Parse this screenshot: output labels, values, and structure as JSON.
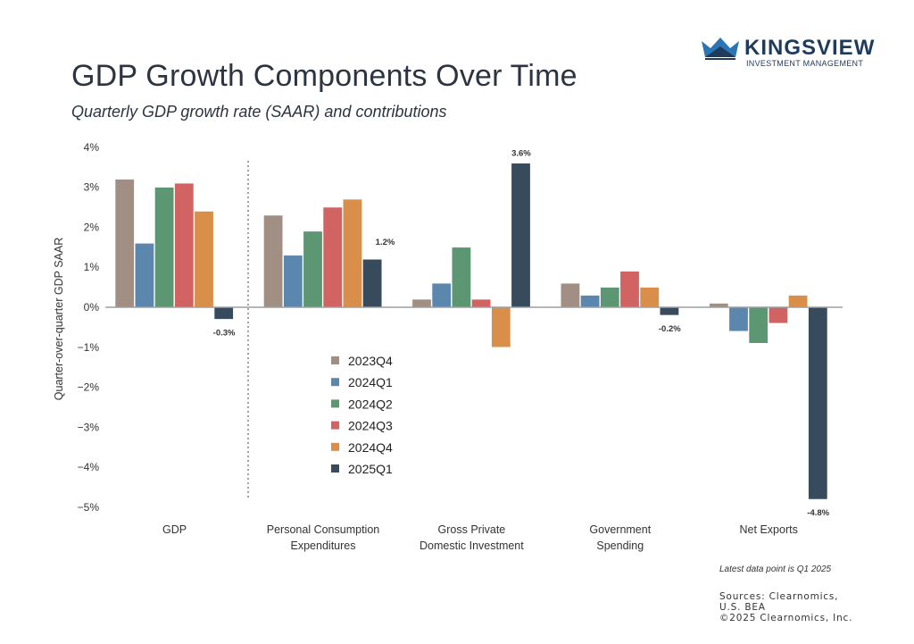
{
  "header": {
    "title": "GDP Growth Components Over Time",
    "subtitle": "Quarterly GDP growth rate (SAAR) and contributions"
  },
  "logo": {
    "name": "KINGSVIEW",
    "tagline": "INVESTMENT MANAGEMENT",
    "icon": "crown-icon"
  },
  "footer": {
    "note": "Latest data point is Q1 2025",
    "sources_line1": "Sources: Clearnomics,",
    "sources_line2": "U.S. BEA",
    "copyright": "©2025 Clearnomics, Inc."
  },
  "chart_data": {
    "type": "bar",
    "title": "GDP Growth Components Over Time",
    "subtitle": "Quarterly GDP growth rate (SAAR) and contributions",
    "xlabel": "",
    "ylabel": "Quarter-over-quarter GDP SAAR",
    "ylim": [
      -5,
      4
    ],
    "yticks": [
      4,
      3,
      2,
      1,
      0,
      -1,
      -2,
      -3,
      -4,
      -5
    ],
    "ytick_labels": [
      "4%",
      "3%",
      "2%",
      "1%",
      "0%",
      "−1%",
      "−2%",
      "−3%",
      "−4%",
      "−5%"
    ],
    "grid": false,
    "legend_position": "center-left",
    "categories": [
      [
        "GDP"
      ],
      [
        "Personal Consumption",
        "Expenditures"
      ],
      [
        "Gross Private",
        "Domestic Investment"
      ],
      [
        "Government",
        "Spending"
      ],
      [
        "Net Exports"
      ]
    ],
    "category_names": [
      "GDP",
      "Personal Consumption Expenditures",
      "Gross Private Domestic Investment",
      "Government Spending",
      "Net Exports"
    ],
    "series": [
      {
        "name": "2023Q4",
        "color": "#A18F83",
        "values": [
          3.2,
          2.3,
          0.2,
          0.6,
          0.1
        ]
      },
      {
        "name": "2024Q1",
        "color": "#5B87AE",
        "values": [
          1.6,
          1.3,
          0.6,
          0.3,
          -0.6
        ]
      },
      {
        "name": "2024Q2",
        "color": "#5D9673",
        "values": [
          3.0,
          1.9,
          1.5,
          0.5,
          -0.9
        ]
      },
      {
        "name": "2024Q3",
        "color": "#D26363",
        "values": [
          3.1,
          2.5,
          0.2,
          0.9,
          -0.4
        ]
      },
      {
        "name": "2024Q4",
        "color": "#D98E4A",
        "values": [
          2.4,
          2.7,
          -1.0,
          0.5,
          0.3
        ]
      },
      {
        "name": "2025Q1",
        "color": "#374B5C",
        "values": [
          -0.3,
          1.2,
          3.6,
          -0.2,
          -4.8
        ]
      }
    ],
    "data_labels": [
      {
        "series": "2025Q1",
        "category": "GDP",
        "text": "-0.3%"
      },
      {
        "series": "2025Q1",
        "category": "Personal Consumption Expenditures",
        "text": "1.2%"
      },
      {
        "series": "2025Q1",
        "category": "Gross Private Domestic Investment",
        "text": "3.6%"
      },
      {
        "series": "2025Q1",
        "category": "Government Spending",
        "text": "-0.2%"
      },
      {
        "series": "2025Q1",
        "category": "Net Exports",
        "text": "-4.8%"
      }
    ],
    "annotations": [
      "dotted divider between GDP and its components"
    ]
  }
}
